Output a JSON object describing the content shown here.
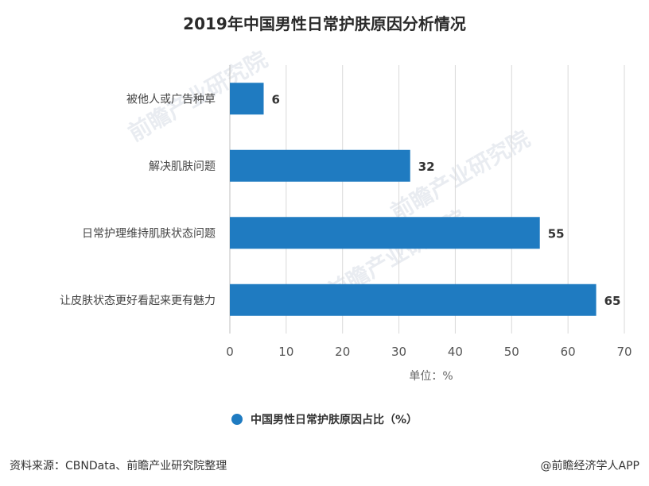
{
  "title": "2019年中国男性日常护肤原因分析情况",
  "unit_label": "单位：%",
  "legend_label": "中国男性日常护肤原因占比（%）",
  "source": "资料来源：CBNData、前瞻产业研究院整理",
  "credit": "@前瞻经济学人APP",
  "watermark_text": "前瞻产业研究院",
  "colors": {
    "bar": "#1f7bc1",
    "grid": "#d9d9d9",
    "axis": "#bfbfbf",
    "text": "#333333"
  },
  "chart_data": {
    "type": "bar",
    "orientation": "horizontal",
    "categories": [
      "被他人或广告种草",
      "解决肌肤问题",
      "日常护理维持肌肤状态问题",
      "让皮肤状态更好看起来更有魅力"
    ],
    "values": [
      6,
      32,
      55,
      65
    ],
    "xlim": [
      0,
      70
    ],
    "xticks": [
      0,
      10,
      20,
      30,
      40,
      50,
      60,
      70
    ],
    "grid": true,
    "legend_position": "bottom"
  }
}
